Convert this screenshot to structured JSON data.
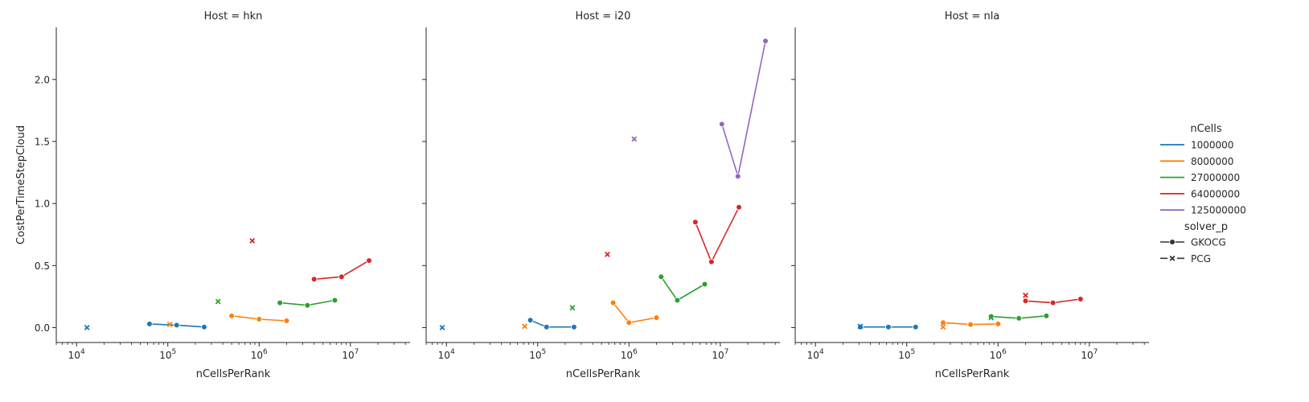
{
  "figure": {
    "ylabel": "CostPerTimeStepCloud",
    "xlabel": "nCellsPerRank",
    "legend_hue_title": "nCells",
    "legend_style_title": "solver_p"
  },
  "chart_data": {
    "type": "line",
    "x_scale": "log",
    "xlim": [
      6000,
      45000000
    ],
    "ylim": [
      -0.12,
      2.42
    ],
    "yticks": [
      0.0,
      0.5,
      1.0,
      1.5,
      2.0
    ],
    "ytick_labels": [
      "0.0",
      "0.5",
      "1.0",
      "1.5",
      "2.0"
    ],
    "xticks": [
      10000,
      100000,
      1000000,
      10000000
    ],
    "xtick_labels": [
      "10^4",
      "10^5",
      "10^6",
      "10^7"
    ],
    "grid": false,
    "legend_position": "right",
    "hue_levels": [
      {
        "label": "1000000",
        "color": "#1f77b4"
      },
      {
        "label": "8000000",
        "color": "#ff7f0e"
      },
      {
        "label": "27000000",
        "color": "#2ca02c"
      },
      {
        "label": "64000000",
        "color": "#d62728"
      },
      {
        "label": "125000000",
        "color": "#9467bd"
      }
    ],
    "style_levels": [
      {
        "label": "GKOCG",
        "marker": "circle"
      },
      {
        "label": "PCG",
        "marker": "x"
      }
    ],
    "panels": [
      {
        "title": "Host = hkn",
        "series": [
          {
            "name": "1000000",
            "solver": "GKOCG",
            "x": [
              63000,
              125000,
              250000
            ],
            "y": [
              0.03,
              0.02,
              0.005
            ]
          },
          {
            "name": "1000000",
            "solver": "PCG",
            "x": [
              13000
            ],
            "y": [
              0.0
            ]
          },
          {
            "name": "8000000",
            "solver": "GKOCG",
            "x": [
              500000,
              1000000,
              2000000
            ],
            "y": [
              0.095,
              0.068,
              0.055
            ]
          },
          {
            "name": "8000000",
            "solver": "PCG",
            "x": [
              105000
            ],
            "y": [
              0.025
            ]
          },
          {
            "name": "27000000",
            "solver": "GKOCG",
            "x": [
              1690000,
              3380000,
              6750000
            ],
            "y": [
              0.2,
              0.18,
              0.22
            ]
          },
          {
            "name": "27000000",
            "solver": "PCG",
            "x": [
              355000
            ],
            "y": [
              0.21
            ]
          },
          {
            "name": "64000000",
            "solver": "GKOCG",
            "x": [
              4000000,
              8000000,
              16000000
            ],
            "y": [
              0.39,
              0.41,
              0.54
            ]
          },
          {
            "name": "64000000",
            "solver": "PCG",
            "x": [
              840000
            ],
            "y": [
              0.7
            ]
          }
        ]
      },
      {
        "title": "Host = i20",
        "series": [
          {
            "name": "1000000",
            "solver": "GKOCG",
            "x": [
              83000,
              125000,
              250000
            ],
            "y": [
              0.06,
              0.005,
              0.005
            ]
          },
          {
            "name": "1000000",
            "solver": "PCG",
            "x": [
              9000
            ],
            "y": [
              0.0
            ]
          },
          {
            "name": "8000000",
            "solver": "GKOCG",
            "x": [
              670000,
              1000000,
              2000000
            ],
            "y": [
              0.2,
              0.04,
              0.08
            ]
          },
          {
            "name": "8000000",
            "solver": "PCG",
            "x": [
              72000
            ],
            "y": [
              0.01
            ]
          },
          {
            "name": "27000000",
            "solver": "GKOCG",
            "x": [
              2250000,
              3380000,
              6750000
            ],
            "y": [
              0.41,
              0.22,
              0.35
            ]
          },
          {
            "name": "27000000",
            "solver": "PCG",
            "x": [
              240000
            ],
            "y": [
              0.16
            ]
          },
          {
            "name": "64000000",
            "solver": "GKOCG",
            "x": [
              5330000,
              8000000,
              16000000
            ],
            "y": [
              0.85,
              0.53,
              0.97
            ]
          },
          {
            "name": "64000000",
            "solver": "PCG",
            "x": [
              580000
            ],
            "y": [
              0.59
            ]
          },
          {
            "name": "125000000",
            "solver": "GKOCG",
            "x": [
              10400000,
              15600000,
              31250000
            ],
            "y": [
              1.64,
              1.22,
              2.31
            ]
          },
          {
            "name": "125000000",
            "solver": "PCG",
            "x": [
              1140000
            ],
            "y": [
              1.52
            ]
          }
        ]
      },
      {
        "title": "Host = nla",
        "series": [
          {
            "name": "1000000",
            "solver": "GKOCG",
            "x": [
              31000,
              63000,
              125000
            ],
            "y": [
              0.005,
              0.005,
              0.005
            ]
          },
          {
            "name": "1000000",
            "solver": "PCG",
            "x": [
              31000
            ],
            "y": [
              0.01
            ]
          },
          {
            "name": "8000000",
            "solver": "GKOCG",
            "x": [
              250000,
              500000,
              1000000
            ],
            "y": [
              0.04,
              0.025,
              0.03
            ]
          },
          {
            "name": "8000000",
            "solver": "PCG",
            "x": [
              250000
            ],
            "y": [
              0.005
            ]
          },
          {
            "name": "27000000",
            "solver": "GKOCG",
            "x": [
              840000,
              1690000,
              3380000
            ],
            "y": [
              0.09,
              0.075,
              0.095
            ]
          },
          {
            "name": "27000000",
            "solver": "PCG",
            "x": [
              840000
            ],
            "y": [
              0.08
            ]
          },
          {
            "name": "64000000",
            "solver": "GKOCG",
            "x": [
              2000000,
              4000000,
              8000000
            ],
            "y": [
              0.215,
              0.2,
              0.23
            ]
          },
          {
            "name": "64000000",
            "solver": "PCG",
            "x": [
              2000000
            ],
            "y": [
              0.26
            ]
          }
        ]
      }
    ]
  }
}
